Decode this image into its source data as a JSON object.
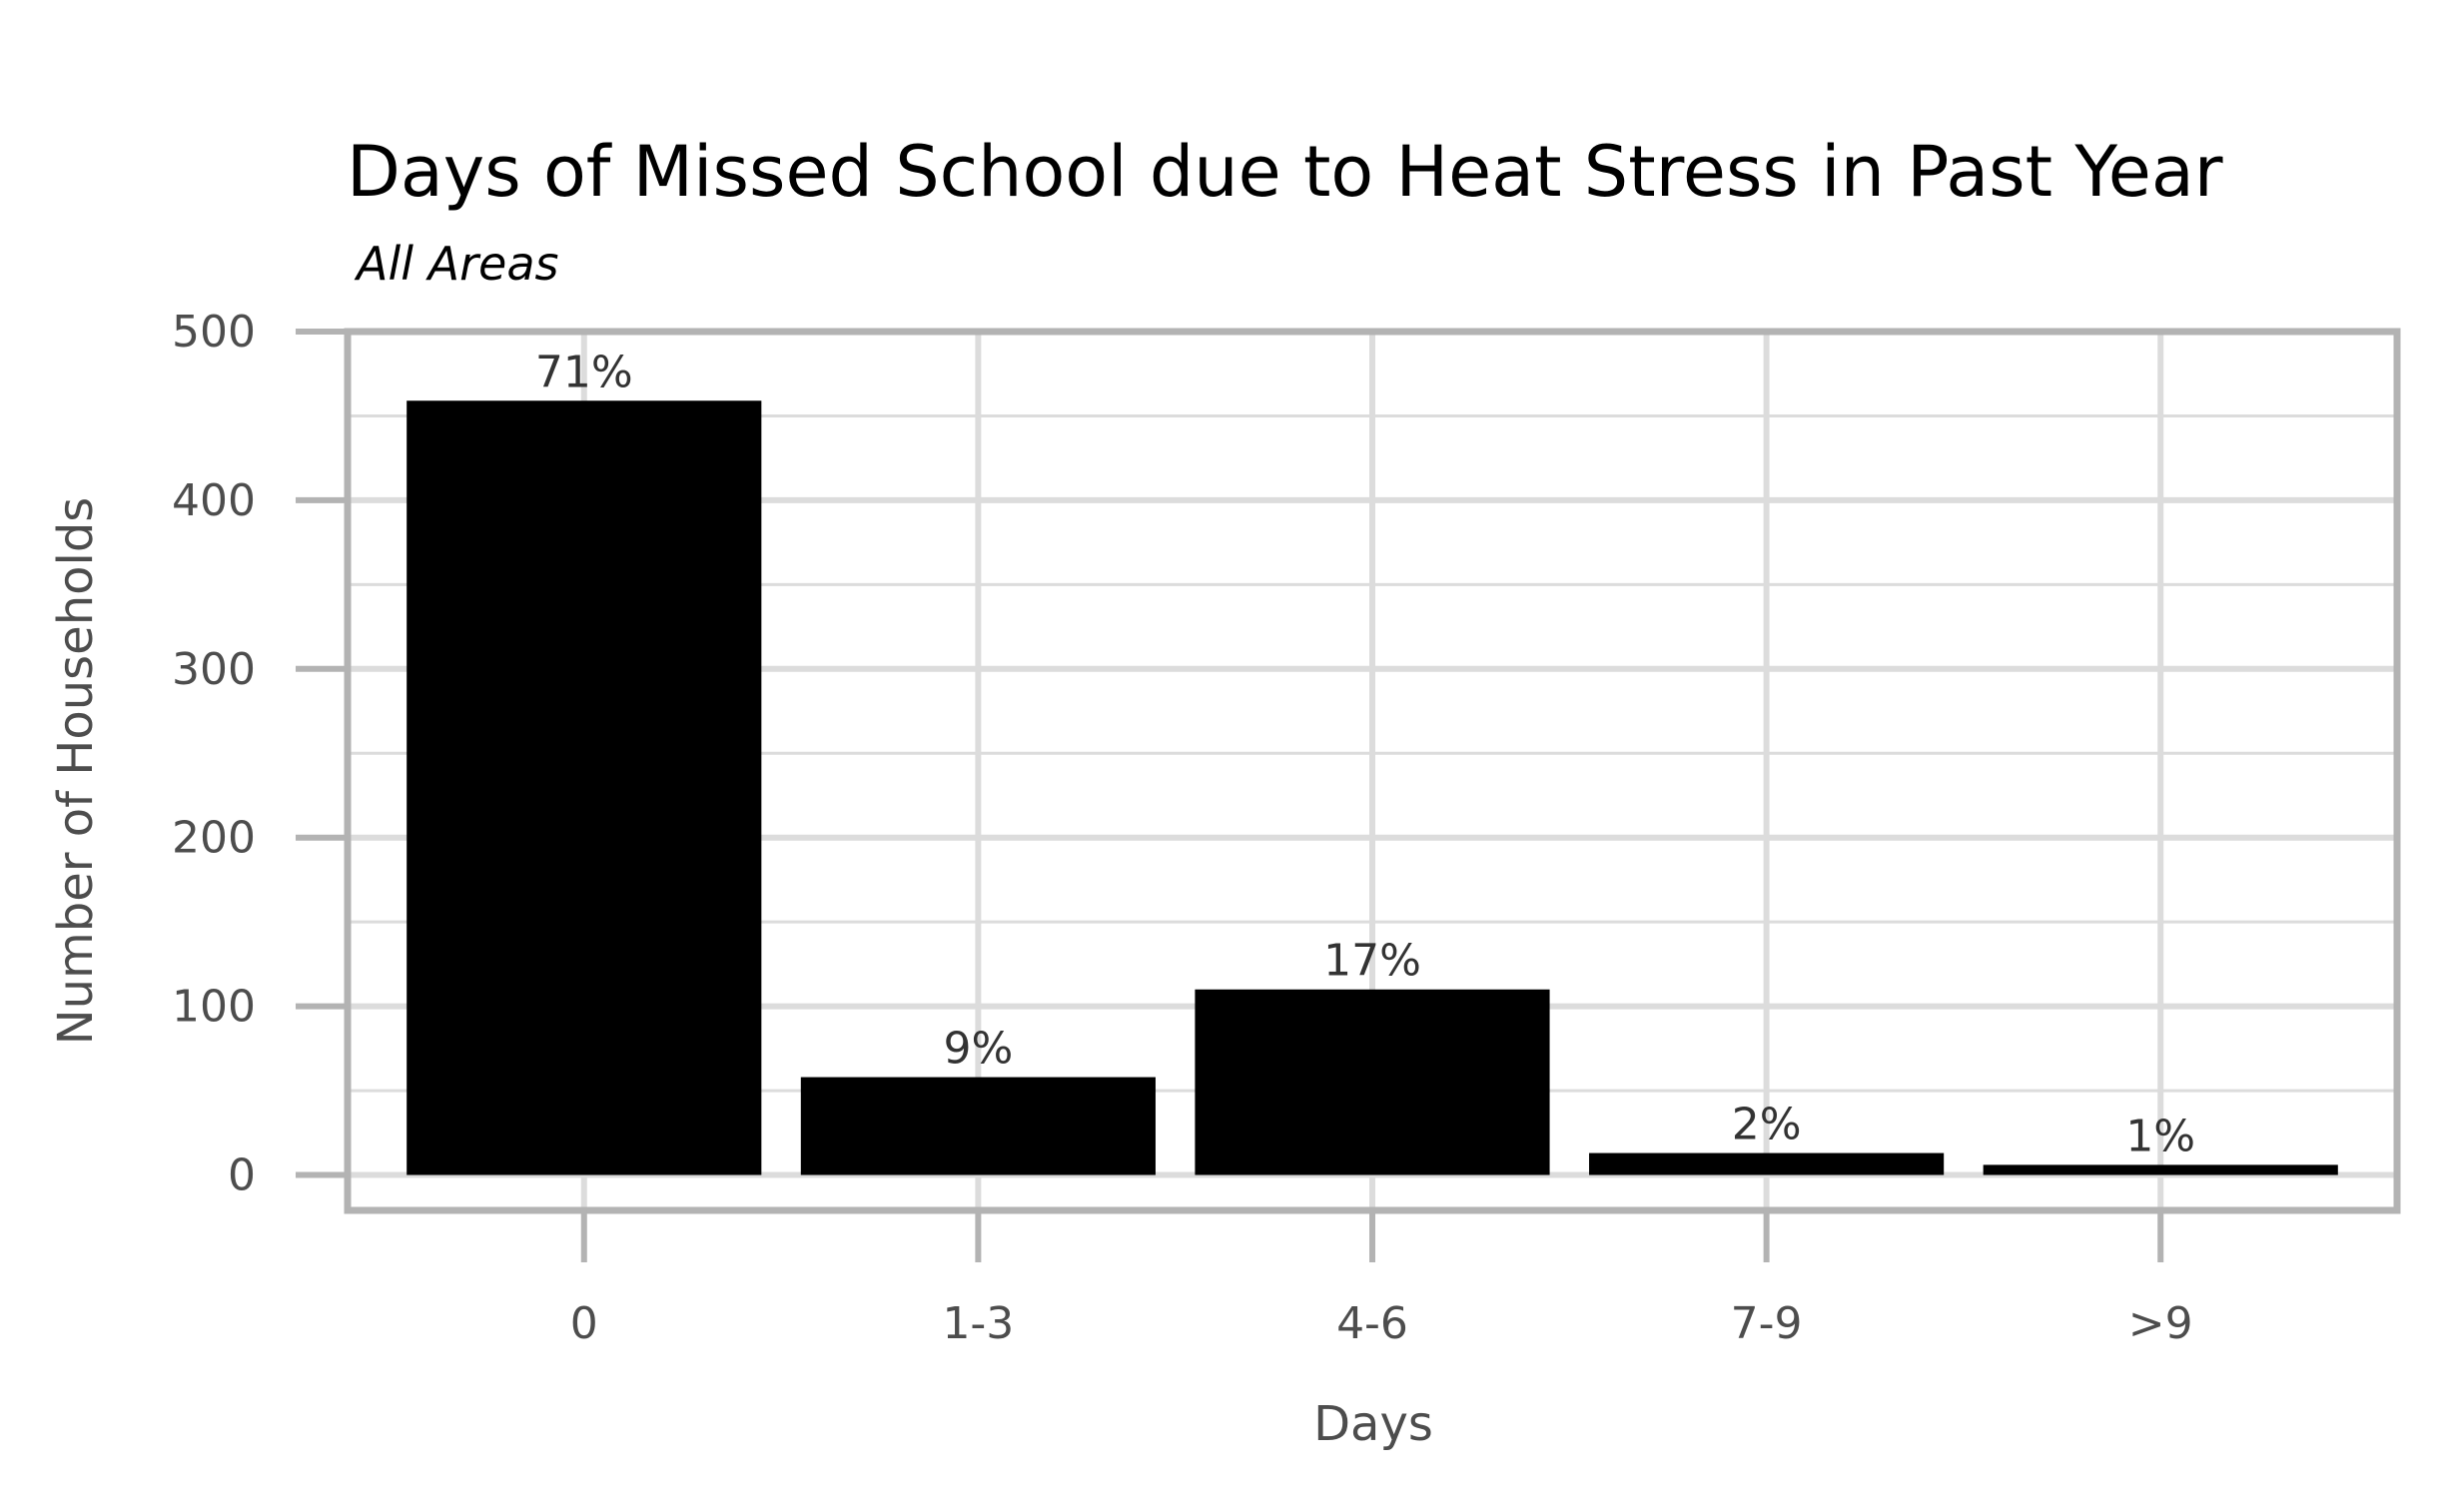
{
  "chart_data": {
    "type": "bar",
    "title": "Days of Missed School due to Heat Stress in Past Year",
    "subtitle": "All Areas",
    "xlabel": "Days",
    "ylabel": "Number of Households",
    "categories": [
      "0",
      "1-3",
      "4-6",
      "7-9",
      ">9"
    ],
    "values": [
      459,
      58,
      110,
      13,
      6
    ],
    "data_labels": [
      "71%",
      "9%",
      "17%",
      "2%",
      "1%"
    ],
    "ylim": [
      -21,
      500
    ],
    "yticks": [
      0,
      100,
      200,
      300,
      400,
      500
    ],
    "ytick_labels": [
      "0",
      "100",
      "200",
      "300",
      "400",
      "500"
    ],
    "grid": true,
    "legend": "none",
    "colors": {
      "bar": "#000000",
      "grid": "#dcdcdc",
      "frame": "#b3b3b3",
      "text": "#4d4d4d"
    }
  }
}
